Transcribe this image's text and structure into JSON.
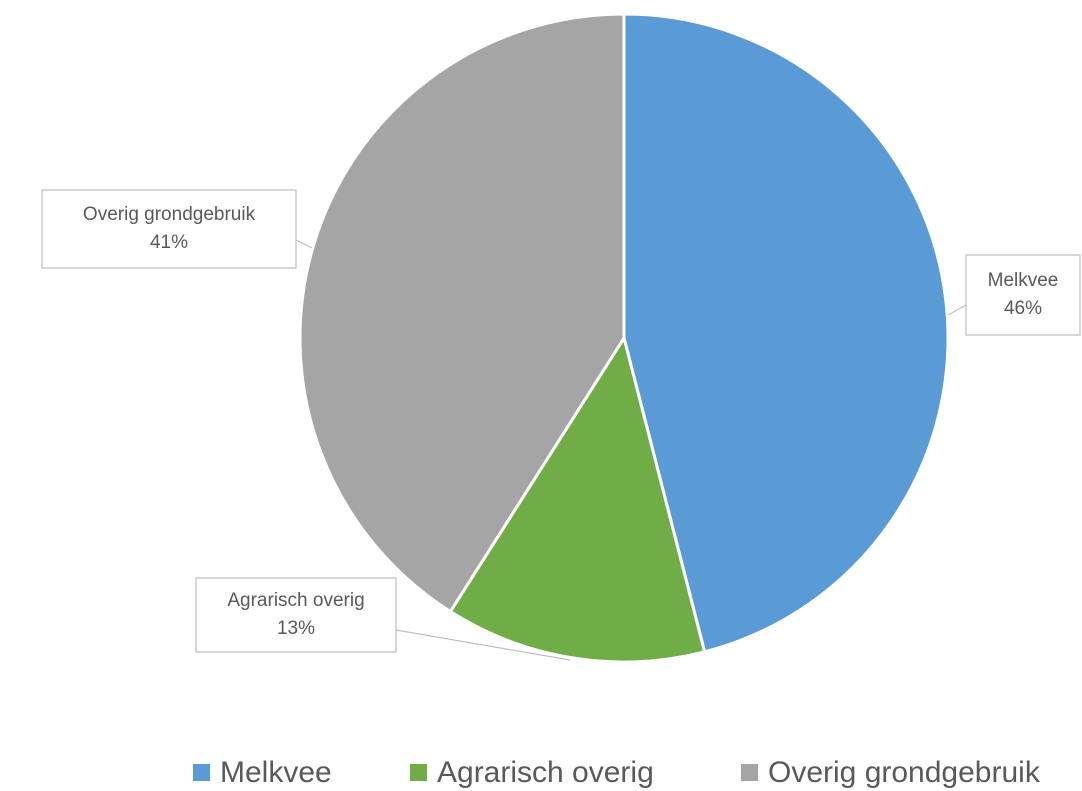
{
  "chart_data": {
    "type": "pie",
    "categories": [
      "Melkvee",
      "Agrarisch overig",
      "Overig grondgebruik"
    ],
    "values": [
      46,
      13,
      41
    ],
    "value_labels": [
      "46%",
      "13%",
      "41%"
    ],
    "colors": [
      "#5b9bd5",
      "#70ad47",
      "#a5a5a5"
    ],
    "legend": "bottom"
  }
}
